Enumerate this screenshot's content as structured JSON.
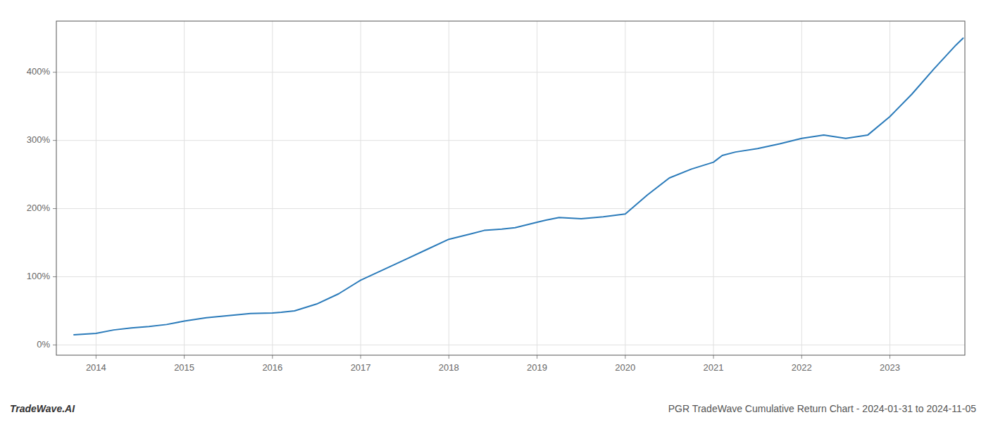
{
  "chart_data": {
    "type": "line",
    "title": "PGR TradeWave Cumulative Return Chart - 2024-01-31 to 2024-11-05",
    "annotations": [
      "TradeWave.AI"
    ],
    "color": "#2b7bba",
    "grid": true,
    "x": [
      2013.75,
      2014.0,
      2014.2,
      2014.4,
      2014.6,
      2014.8,
      2015.0,
      2015.25,
      2015.5,
      2015.75,
      2016.0,
      2016.1,
      2016.25,
      2016.5,
      2016.75,
      2017.0,
      2017.25,
      2017.5,
      2017.75,
      2018.0,
      2018.25,
      2018.4,
      2018.6,
      2018.75,
      2019.0,
      2019.1,
      2019.25,
      2019.5,
      2019.75,
      2020.0,
      2020.25,
      2020.5,
      2020.75,
      2021.0,
      2021.1,
      2021.25,
      2021.5,
      2021.75,
      2022.0,
      2022.25,
      2022.5,
      2022.75,
      2023.0,
      2023.25,
      2023.5,
      2023.75,
      2023.83
    ],
    "values": [
      15,
      17,
      22,
      25,
      27,
      30,
      35,
      40,
      43,
      46,
      47,
      48,
      50,
      60,
      75,
      95,
      110,
      125,
      140,
      155,
      163,
      168,
      170,
      172,
      180,
      183,
      187,
      185,
      188,
      192,
      220,
      245,
      258,
      268,
      278,
      283,
      288,
      295,
      303,
      308,
      303,
      308,
      335,
      368,
      405,
      440,
      450
    ],
    "xlim": [
      2013.55,
      2023.85
    ],
    "xticks": [
      2014,
      2015,
      2016,
      2017,
      2018,
      2019,
      2020,
      2021,
      2022,
      2023
    ],
    "ylim": [
      -15,
      475
    ],
    "yticks": [
      {
        "value": 0,
        "label": "0%"
      },
      {
        "value": 100,
        "label": "100%"
      },
      {
        "value": 200,
        "label": "200%"
      },
      {
        "value": 300,
        "label": "300%"
      },
      {
        "value": 400,
        "label": "400%"
      }
    ]
  }
}
